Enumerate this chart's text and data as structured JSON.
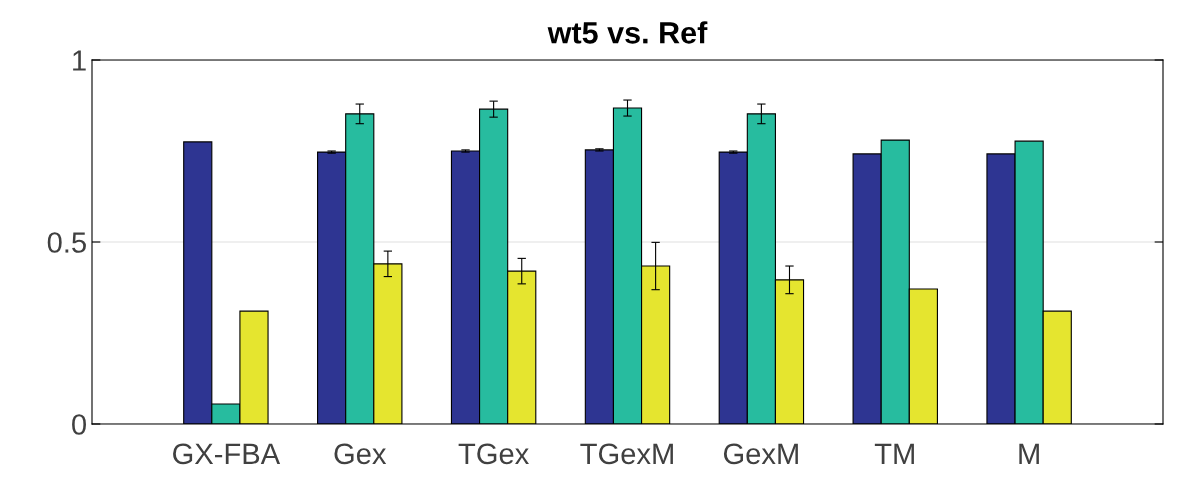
{
  "chart_data": {
    "type": "bar",
    "title": "wt5 vs. Ref",
    "categories": [
      "GX-FBA",
      "Gex",
      "TGex",
      "TGexM",
      "GexM",
      "TM",
      "M"
    ],
    "series": [
      {
        "color": "#2e3592",
        "values": [
          0.775,
          0.747,
          0.75,
          0.753,
          0.747,
          0.742,
          0.742
        ],
        "errors": [
          null,
          0.003,
          0.003,
          0.003,
          0.003,
          null,
          null
        ]
      },
      {
        "color": "#27bc9f",
        "values": [
          0.055,
          0.852,
          0.865,
          0.868,
          0.852,
          0.78,
          0.777
        ],
        "errors": [
          null,
          0.027,
          0.022,
          0.022,
          0.027,
          null,
          null
        ]
      },
      {
        "color": "#e5e52f",
        "values": [
          0.31,
          0.44,
          0.42,
          0.434,
          0.396,
          0.371,
          0.31
        ],
        "errors": [
          null,
          0.035,
          0.035,
          0.065,
          0.038,
          null,
          null
        ]
      }
    ],
    "ylim": [
      0,
      1
    ],
    "yticks": [
      0,
      0.5,
      1
    ],
    "grid": "y"
  }
}
